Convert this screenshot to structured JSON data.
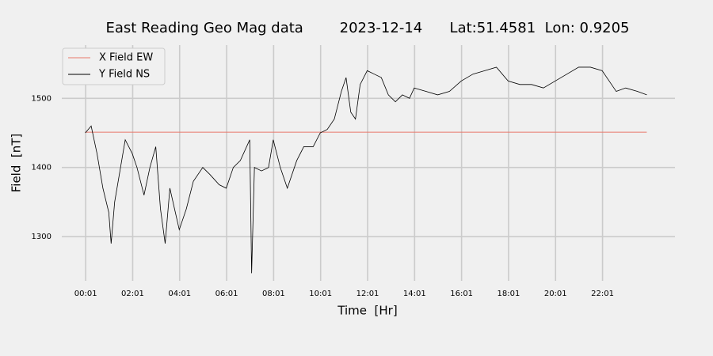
{
  "chart_data": {
    "type": "line",
    "title": "East Reading Geo Mag data        2023-12-14      Lat:51.4581  Lon: 0.9205",
    "xlabel": "Time  [Hr]",
    "ylabel": "Field  [nT]",
    "x": [
      0,
      0.25,
      0.5,
      0.75,
      1.0,
      1.1,
      1.25,
      1.5,
      1.7,
      2.0,
      2.2,
      2.5,
      2.75,
      3.0,
      3.2,
      3.4,
      3.6,
      3.8,
      4.0,
      4.3,
      4.6,
      5.0,
      5.3,
      5.7,
      6.0,
      6.3,
      6.6,
      7.0,
      7.08,
      7.2,
      7.5,
      7.8,
      8.0,
      8.3,
      8.6,
      9.0,
      9.3,
      9.7,
      10.0,
      10.3,
      10.6,
      10.9,
      11.1,
      11.3,
      11.5,
      11.7,
      12.0,
      12.3,
      12.6,
      12.9,
      13.2,
      13.5,
      13.8,
      14.0,
      14.5,
      15.0,
      15.5,
      16.0,
      16.5,
      17.0,
      17.5,
      18.0,
      18.5,
      19.0,
      19.5,
      20.0,
      20.5,
      21.0,
      21.5,
      22.0,
      22.3,
      22.6,
      23.0,
      23.5,
      23.9
    ],
    "series": [
      {
        "name": "X Field EW",
        "color": "#e8776a",
        "values": [
          1451,
          1451,
          1451,
          1451,
          1451,
          1451,
          1451,
          1451,
          1451,
          1451,
          1451,
          1451,
          1451,
          1451,
          1451,
          1451,
          1451,
          1451,
          1451,
          1451,
          1451,
          1451,
          1451,
          1451,
          1451,
          1451,
          1451,
          1451,
          1451,
          1451,
          1451,
          1451,
          1451,
          1451,
          1451,
          1451,
          1451,
          1451,
          1451,
          1451,
          1451,
          1451,
          1451,
          1451,
          1451,
          1451,
          1451,
          1451,
          1451,
          1451,
          1451,
          1451,
          1451,
          1451,
          1451,
          1451,
          1451,
          1451,
          1451,
          1451,
          1451,
          1451,
          1451,
          1451,
          1451,
          1451,
          1451,
          1451,
          1451,
          1451,
          1451,
          1451,
          1451,
          1451,
          1451
        ]
      },
      {
        "name": "Y Field NS",
        "color": "#000000",
        "values": [
          1450,
          1460,
          1420,
          1370,
          1335,
          1290,
          1350,
          1400,
          1440,
          1420,
          1400,
          1360,
          1400,
          1430,
          1340,
          1290,
          1370,
          1340,
          1310,
          1340,
          1380,
          1400,
          1390,
          1375,
          1370,
          1400,
          1410,
          1440,
          1247,
          1400,
          1395,
          1400,
          1440,
          1400,
          1370,
          1410,
          1430,
          1430,
          1450,
          1455,
          1470,
          1510,
          1530,
          1480,
          1470,
          1520,
          1540,
          1535,
          1530,
          1505,
          1495,
          1505,
          1500,
          1515,
          1510,
          1505,
          1510,
          1525,
          1535,
          1540,
          1545,
          1525,
          1520,
          1520,
          1515,
          1525,
          1535,
          1545,
          1545,
          1540,
          1525,
          1510,
          1515,
          1510,
          1505
        ]
      }
    ],
    "xlim": [
      -1.0,
      25.1
    ],
    "ylim": [
      1236,
      1577
    ],
    "xticks": [
      {
        "value": 0.0167,
        "label": "00:01"
      },
      {
        "value": 2.0167,
        "label": "02:01"
      },
      {
        "value": 4.0167,
        "label": "04:01"
      },
      {
        "value": 6.0167,
        "label": "06:01"
      },
      {
        "value": 8.0167,
        "label": "08:01"
      },
      {
        "value": 10.0167,
        "label": "10:01"
      },
      {
        "value": 12.0167,
        "label": "12:01"
      },
      {
        "value": 14.0167,
        "label": "14:01"
      },
      {
        "value": 16.0167,
        "label": "16:01"
      },
      {
        "value": 18.0167,
        "label": "18:01"
      },
      {
        "value": 20.0167,
        "label": "20:01"
      },
      {
        "value": 22.0167,
        "label": "22:01"
      }
    ],
    "yticks": [
      1300,
      1400,
      1500
    ],
    "grid": true,
    "legend": "upper left"
  }
}
